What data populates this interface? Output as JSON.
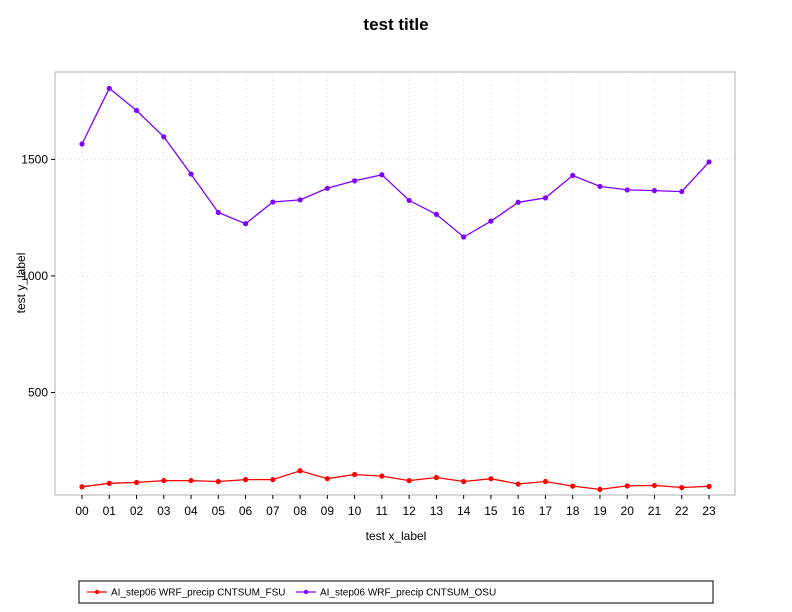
{
  "chart_data": {
    "type": "line",
    "title": "test title",
    "xlabel": "test x_label",
    "ylabel": "test y_label",
    "categories": [
      "00",
      "01",
      "02",
      "03",
      "04",
      "05",
      "06",
      "07",
      "08",
      "09",
      "10",
      "11",
      "12",
      "13",
      "14",
      "15",
      "16",
      "17",
      "18",
      "19",
      "20",
      "21",
      "22",
      "23"
    ],
    "ylim": [
      60,
      1875
    ],
    "yticks": [
      500,
      1000,
      1500
    ],
    "grid": true,
    "legend_position": "bottom",
    "series": [
      {
        "name": "AI_step06 WRF_precip CNTSUM_FSU",
        "color": "#ff0000",
        "values": [
          95,
          110,
          114,
          122,
          122,
          118,
          126,
          126,
          164,
          130,
          148,
          141,
          122,
          135,
          118,
          130,
          107,
          118,
          98,
          84,
          99,
          101,
          92,
          97
        ]
      },
      {
        "name": "AI_step06 WRF_precip CNTSUM_OSU",
        "color": "#8000ff",
        "values": [
          1566,
          1805,
          1710,
          1597,
          1437,
          1272,
          1224,
          1317,
          1326,
          1376,
          1408,
          1434,
          1324,
          1264,
          1167,
          1235,
          1316,
          1335,
          1431,
          1384,
          1369,
          1366,
          1362,
          1489
        ]
      }
    ]
  }
}
